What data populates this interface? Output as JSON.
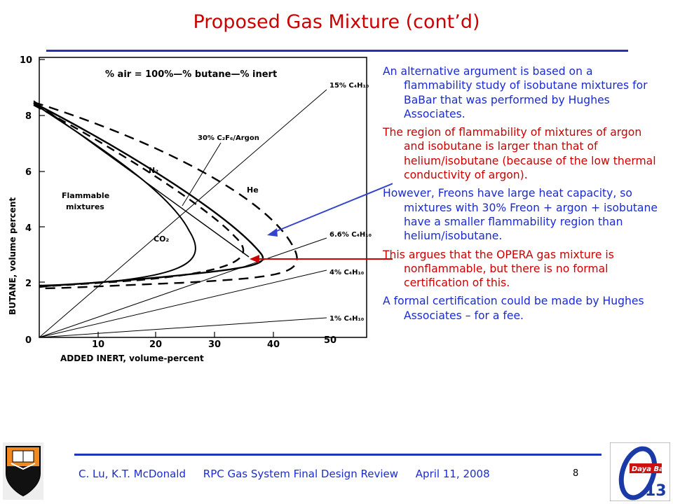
{
  "slide": {
    "title": "Proposed Gas Mixture (cont’d)",
    "page_number": "8"
  },
  "figure": {
    "formula_label": "% air = 100%—% butane—% inert",
    "y_axis_label": "BUTANE, volume percent",
    "x_axis_label": "ADDED INERT, volume-percent",
    "y_ticks": [
      "0",
      "2",
      "4",
      "6",
      "8",
      "10"
    ],
    "x_ticks": [
      "10",
      "20",
      "30",
      "40",
      "50"
    ],
    "curve_labels": {
      "freon_argon": "30% C₂F₆/Argon",
      "n2": "N₂",
      "he": "He",
      "co2": "CO₂",
      "flammable": "Flammable",
      "mixtures": "mixtures"
    },
    "line_labels": [
      "15% C₄H₁₀",
      "6.6% C₄H₁₀",
      "4% C₄H₁₀",
      "1% C₄H₁₀"
    ],
    "colors": {
      "arrow_blue": "#3344cc",
      "arrow_red": "#cc0000"
    }
  },
  "bullets": [
    {
      "text": "An alternative argument is based on a flammability study of isobutane mixtures for BaBar that was performed by Hughes Associates.",
      "color": "blue"
    },
    {
      "text": "The region of flammability of mixtures of argon and isobutane is larger than that of helium/isobutane (because of the low thermal conductivity of argon).",
      "color": "red"
    },
    {
      "text": "However, Freons have large heat capacity, so mixtures with 30% Freon + argon + isobutane have a smaller flammability region than helium/isobutane.",
      "color": "blue"
    },
    {
      "text": "This argues that the OPERA gas mixture is nonflammable, but there is no formal certification of this.",
      "color": "red"
    },
    {
      "text": "A formal certification could be made by Hughes Associates – for a fee.",
      "color": "blue"
    }
  ],
  "footer": {
    "authors": "C. Lu, K.T. McDonald",
    "event": "RPC Gas System Final Design Review",
    "date": "April 11, 2008"
  },
  "logos": {
    "left_icon": "princeton-shield-icon",
    "right_icon": "daya-bay-logo-icon",
    "right_text": "Daya Bay",
    "right_number": "13"
  }
}
